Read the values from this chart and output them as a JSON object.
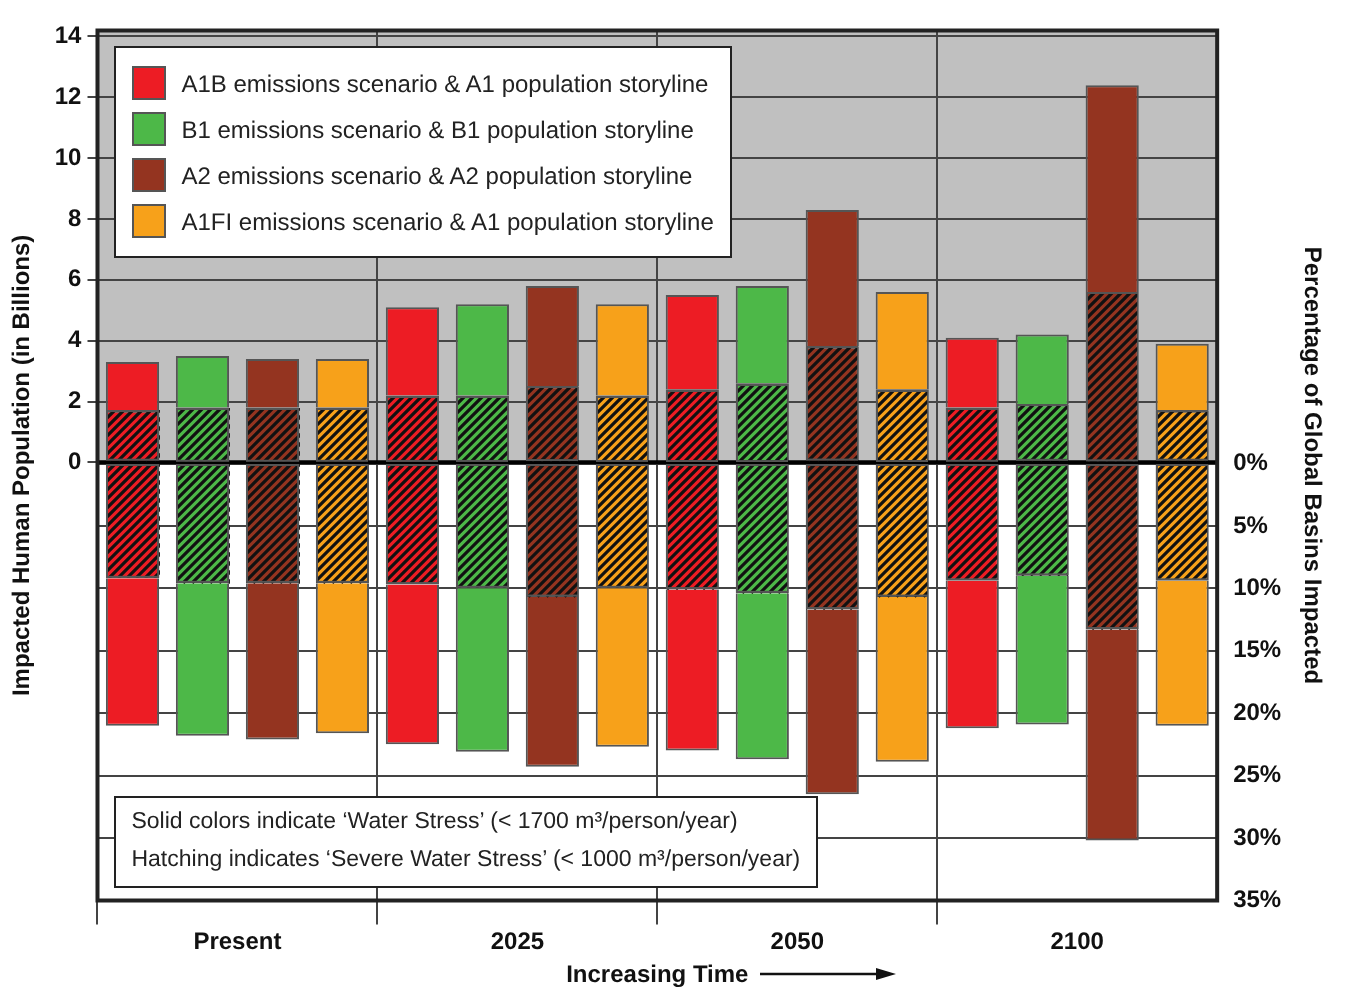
{
  "chart_data": {
    "type": "bar",
    "stacked": true,
    "categories": [
      null,
      "Present",
      null,
      null,
      null,
      "2025",
      null,
      null,
      null,
      "2050",
      null,
      null,
      null,
      "2100",
      null,
      null
    ],
    "xlabel": "Increasing Time",
    "ylabel": "Impacted Human Population (in Billions)",
    "y2label": "Percentage of Global Basins Impacted",
    "ylim": [
      -14.4,
      14.2
    ],
    "yticks": [
      0,
      2,
      4,
      6,
      8,
      10,
      12,
      14
    ],
    "y2lim": [
      35,
      -34.7
    ],
    "y2ticks": [
      {
        "value": 0,
        "label": "0%"
      },
      {
        "value": 5,
        "label": "5%"
      },
      {
        "value": 10,
        "label": "10%"
      },
      {
        "value": 15,
        "label": "15%"
      },
      {
        "value": 20,
        "label": "20%"
      },
      {
        "value": 25,
        "label": "25%"
      },
      {
        "value": 30,
        "label": "30%"
      },
      {
        "value": 35,
        "label": "35%"
      }
    ],
    "grid": true,
    "legend": "top left",
    "series": [
      {
        "color": "#ed1c24",
        "values": [
          1.7,
          null,
          null,
          null,
          2.2,
          null,
          null,
          null,
          2.4,
          null,
          null,
          null,
          1.8,
          null,
          null,
          null
        ]
      },
      {
        "name": "A1B emissions scenario & A1 population storyline",
        "color": "#ed1c24",
        "values": [
          1.6,
          null,
          null,
          null,
          2.9,
          null,
          null,
          null,
          3.1,
          null,
          null,
          null,
          2.3,
          null,
          null,
          null
        ]
      },
      {
        "color": "#ed1c24",
        "axis": "y2",
        "values": [
          9.2,
          null,
          null,
          null,
          9.7,
          null,
          null,
          null,
          10.1,
          null,
          null,
          null,
          9.4,
          null,
          null,
          null
        ]
      },
      {
        "color": "#ed1c24",
        "axis": "y2",
        "values": [
          11.8,
          null,
          null,
          null,
          12.8,
          null,
          null,
          null,
          12.9,
          null,
          null,
          null,
          11.8,
          null,
          null,
          null
        ]
      },
      {
        "color": "#4db848",
        "values": [
          null,
          1.8,
          null,
          null,
          null,
          2.2,
          null,
          null,
          null,
          2.6,
          null,
          null,
          null,
          1.9,
          null,
          null
        ]
      },
      {
        "name": "B1 emissions scenario & B1 population storyline",
        "color": "#4db848",
        "values": [
          null,
          1.7,
          null,
          null,
          null,
          3.0,
          null,
          null,
          null,
          3.2,
          null,
          null,
          null,
          2.3,
          null,
          null
        ]
      },
      {
        "color": "#4db848",
        "axis": "y2",
        "values": [
          null,
          9.6,
          null,
          null,
          null,
          10.0,
          null,
          null,
          null,
          10.4,
          null,
          null,
          null,
          9.0,
          null,
          null
        ]
      },
      {
        "color": "#4db848",
        "axis": "y2",
        "values": [
          null,
          12.2,
          null,
          null,
          null,
          13.1,
          null,
          null,
          null,
          13.3,
          null,
          null,
          null,
          11.9,
          null,
          null
        ]
      },
      {
        "color": "#943420",
        "values": [
          null,
          null,
          1.8,
          null,
          null,
          null,
          2.5,
          null,
          null,
          null,
          3.8,
          null,
          null,
          null,
          5.6,
          null
        ]
      },
      {
        "name": "A2 emissions scenario & A2 population storyline",
        "color": "#943420",
        "values": [
          null,
          null,
          1.6,
          null,
          null,
          null,
          3.3,
          null,
          null,
          null,
          4.5,
          null,
          null,
          null,
          6.8,
          null
        ]
      },
      {
        "color": "#943420",
        "axis": "y2",
        "values": [
          null,
          null,
          9.6,
          null,
          null,
          null,
          10.7,
          null,
          null,
          null,
          11.7,
          null,
          null,
          null,
          13.3,
          null
        ]
      },
      {
        "color": "#943420",
        "axis": "y2",
        "values": [
          null,
          null,
          12.5,
          null,
          null,
          null,
          13.6,
          null,
          null,
          null,
          14.8,
          null,
          null,
          null,
          16.9,
          null
        ]
      },
      {
        "color": "#f7a11a",
        "values": [
          null,
          null,
          null,
          1.8,
          null,
          null,
          null,
          2.2,
          null,
          null,
          null,
          2.4,
          null,
          null,
          null,
          1.7
        ]
      },
      {
        "name": "A1FI emissions scenario & A1 population storyline",
        "color": "#f7a11a",
        "values": [
          null,
          null,
          null,
          1.6,
          null,
          null,
          null,
          3.0,
          null,
          null,
          null,
          3.2,
          null,
          null,
          null,
          2.2
        ]
      },
      {
        "color": "#f7a11a",
        "axis": "y2",
        "values": [
          null,
          null,
          null,
          9.6,
          null,
          null,
          null,
          10.0,
          null,
          null,
          null,
          10.7,
          null,
          null,
          null,
          9.4
        ]
      },
      {
        "color": "#f7a11a",
        "axis": "y2",
        "values": [
          null,
          null,
          null,
          12.0,
          null,
          null,
          null,
          12.7,
          null,
          null,
          null,
          13.2,
          null,
          null,
          null,
          11.6
        ]
      }
    ],
    "bands": [
      {
        "axis": "y",
        "from": 0,
        "to": 14.2,
        "color": "#c0c0c0"
      }
    ],
    "ref_lines": [
      {
        "axis": "y",
        "value": 0,
        "color": "#000000"
      }
    ],
    "annotations": [
      "Solid colors indicate ‘Water Stress’ (< 1700 m³/person/year)",
      "Hatching indicates ‘Severe Water Stress’ (< 1000 m³/person/year)"
    ]
  }
}
